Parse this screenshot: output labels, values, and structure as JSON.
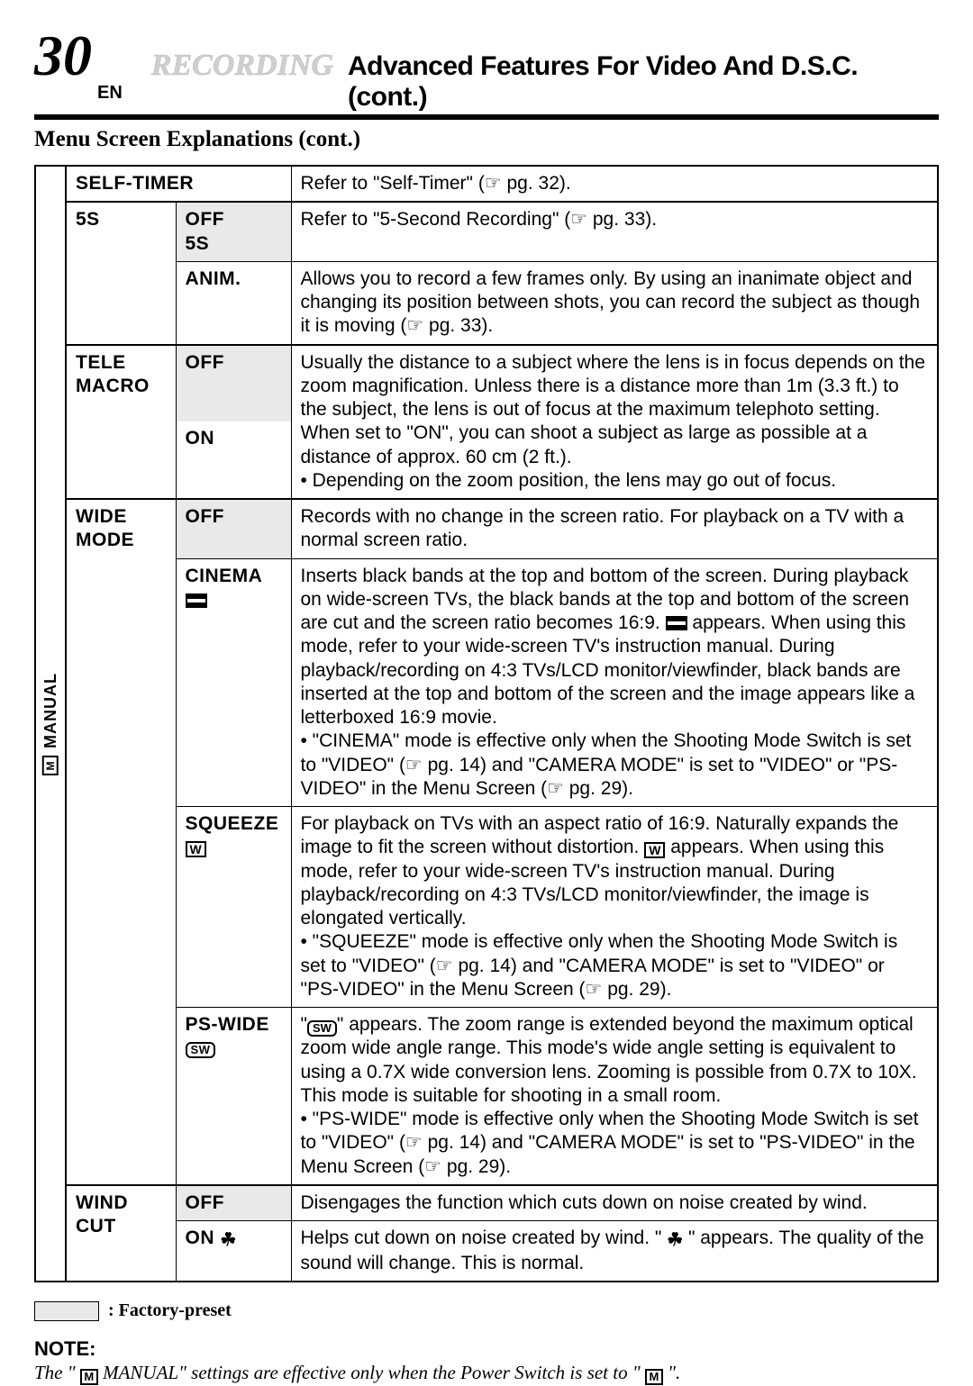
{
  "header": {
    "page_number": "30",
    "en_label": "EN",
    "recording": "RECORDING",
    "rest": "Advanced Features For Video And D.S.C. (cont.)"
  },
  "subheader": "Menu Screen Explanations (cont.)",
  "side_label": "MANUAL",
  "rows": {
    "self_timer": {
      "feature": "SELF-TIMER",
      "desc": "Refer to \"Self-Timer\" (☞ pg. 32)."
    },
    "five_s": {
      "feature": "5S",
      "off": {
        "option1": "OFF",
        "option2": "5S",
        "desc": "Refer to \"5-Second Recording\" (☞ pg. 33)."
      },
      "anim": {
        "option": "ANIM.",
        "desc": "Allows you to record a few frames only. By using an inanimate object and changing its position between shots, you can record the subject as though it is moving (☞ pg. 33)."
      }
    },
    "tele_macro": {
      "feature1": "TELE",
      "feature2": "MACRO",
      "off_option": "OFF",
      "on_option": "ON",
      "desc_full": "Usually the distance to a subject where the lens is in focus depends on the zoom magnification. Unless there is a distance more than 1m (3.3 ft.) to the subject, the lens is out of focus at the maximum telephoto setting. When set to \"ON\", you can shoot a subject as large as possible at a distance of approx. 60 cm (2 ft.).\n• Depending on the zoom position, the lens may go out of focus."
    },
    "wide_mode": {
      "feature1": "WIDE",
      "feature2": "MODE",
      "off": {
        "option": "OFF",
        "desc": "Records with no change in the screen ratio. For playback on a TV with a normal screen ratio."
      },
      "cinema": {
        "option": "CINEMA",
        "desc_a": "Inserts black bands at the top and bottom of the screen. During playback on wide-screen TVs, the black bands at the top and bottom of the screen are cut and the screen ratio becomes 16:9. ",
        "desc_b": " appears. When using this mode, refer to your wide-screen TV's instruction manual. During playback/recording on 4:3 TVs/LCD monitor/viewfinder, black bands are inserted at the top and bottom of the screen and the image appears like a letterboxed 16:9 movie.",
        "bullet": "• \"CINEMA\" mode is effective only when the Shooting Mode Switch is set to \"VIDEO\" (☞ pg. 14) and \"CAMERA MODE\" is set to \"VIDEO\" or \"PS-VIDEO\" in the Menu Screen (☞ pg. 29)."
      },
      "squeeze": {
        "option": "SQUEEZE",
        "desc_a": "For playback on TVs with an aspect ratio of 16:9. Naturally expands the image to fit the screen without distortion. ",
        "desc_b": " appears. When using this mode, refer to your wide-screen TV's instruction manual. During playback/recording on 4:3 TVs/LCD monitor/viewfinder, the image is elongated vertically.",
        "bullet": "• \"SQUEEZE\" mode is effective only when the Shooting Mode Switch is set to \"VIDEO\" (☞ pg. 14) and \"CAMERA MODE\" is set to \"VIDEO\" or \"PS-VIDEO\" in the Menu Screen (☞ pg. 29)."
      },
      "pswide": {
        "option": "PS-WIDE",
        "desc_a": "\"",
        "desc_b": "\" appears. The zoom range is extended beyond the maximum optical zoom wide angle range. This mode's wide angle setting is equivalent to using a 0.7X wide conversion lens. Zooming is possible from 0.7X to 10X. This mode is suitable for shooting in a small room.",
        "bullet": "• \"PS-WIDE\" mode is effective only when the Shooting Mode Switch is set to \"VIDEO\" (☞ pg. 14) and \"CAMERA MODE\" is set to \"PS-VIDEO\" in the Menu Screen (☞ pg. 29)."
      }
    },
    "wind_cut": {
      "feature1": "WIND",
      "feature2": "CUT",
      "off": {
        "option": "OFF",
        "desc": "Disengages the function which cuts down on noise created by wind."
      },
      "on": {
        "option": "ON ",
        "desc_a": "Helps cut down on noise created by wind. \" ",
        "desc_b": " \" appears. The quality of the sound will change. This is normal."
      }
    }
  },
  "legend": ": Factory-preset",
  "note_label": "NOTE:",
  "note_text_a": "The \" ",
  "note_text_b": " MANUAL\" settings are effective only when the Power Switch is set to \" ",
  "note_text_c": " \".",
  "icons": {
    "m_label": "M",
    "w_label": "W",
    "sw_label": "SW"
  }
}
